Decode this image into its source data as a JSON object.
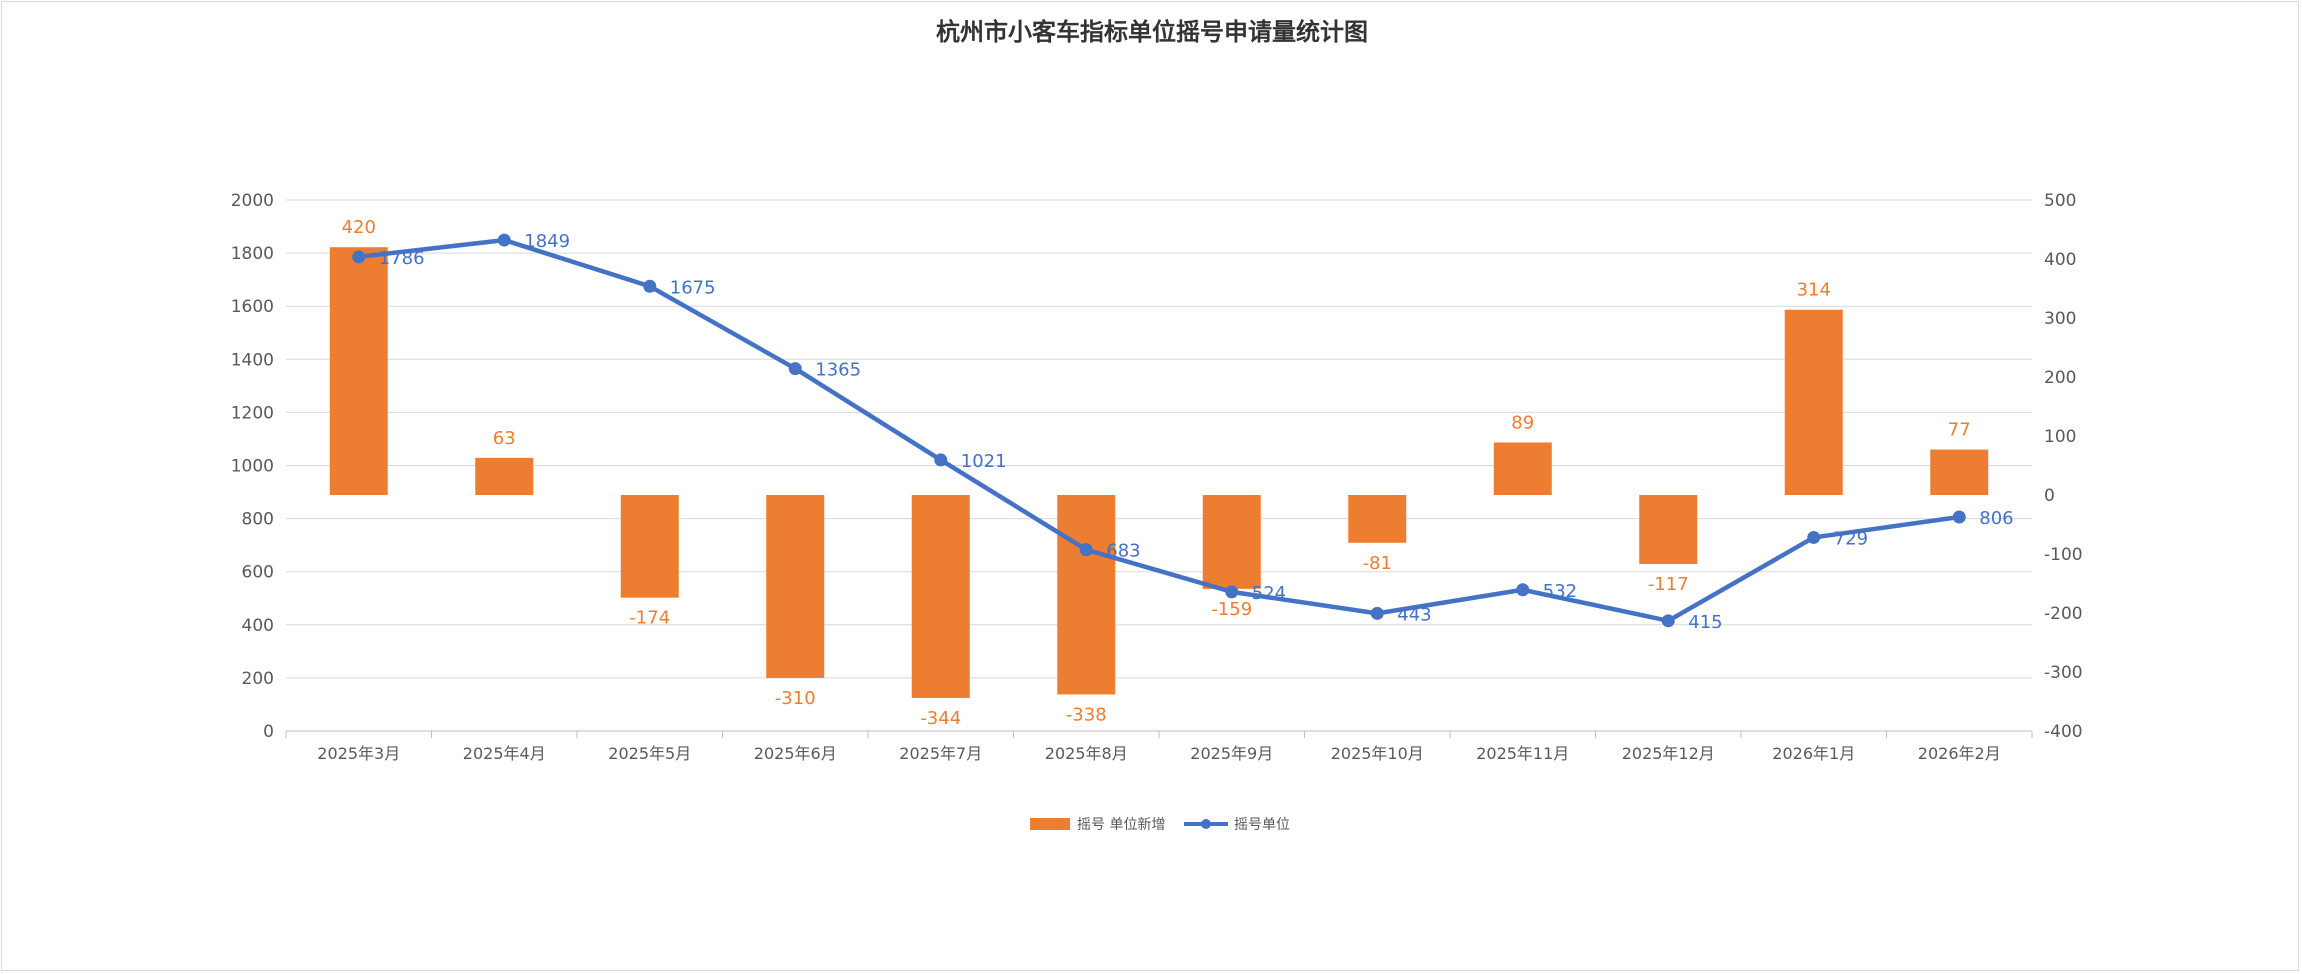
{
  "chart_data": {
    "type": "bar+line",
    "title": "杭州市小客车指标单位摇号申请量统计图",
    "categories": [
      "2025年3月",
      "2025年4月",
      "2025年5月",
      "2025年6月",
      "2025年7月",
      "2025年8月",
      "2025年9月",
      "2025年10月",
      "2025年11月",
      "2025年12月",
      "2026年1月",
      "2026年2月"
    ],
    "series": [
      {
        "name": "摇号 单位新增",
        "type": "bar",
        "axis": "right",
        "color": "#ED7D31",
        "values": [
          420,
          63,
          -174,
          -310,
          -344,
          -338,
          -159,
          -81,
          89,
          -117,
          314,
          77
        ]
      },
      {
        "name": "摇号单位",
        "type": "line",
        "axis": "left",
        "color": "#4472C4",
        "values": [
          1786,
          1849,
          1675,
          1365,
          1021,
          683,
          524,
          443,
          532,
          415,
          729,
          806
        ]
      }
    ],
    "y_left": {
      "min": 0,
      "max": 2000,
      "step": 200,
      "ticks": [
        "0",
        "200",
        "400",
        "600",
        "800",
        "1000",
        "1200",
        "1400",
        "1600",
        "1800",
        "2000"
      ]
    },
    "y_right": {
      "min": -400,
      "max": 500,
      "step": 100,
      "ticks": [
        "-400",
        "-300",
        "-200",
        "-100",
        "0",
        "100",
        "200",
        "300",
        "400",
        "500"
      ]
    },
    "grid": true,
    "legend_position": "bottom"
  }
}
